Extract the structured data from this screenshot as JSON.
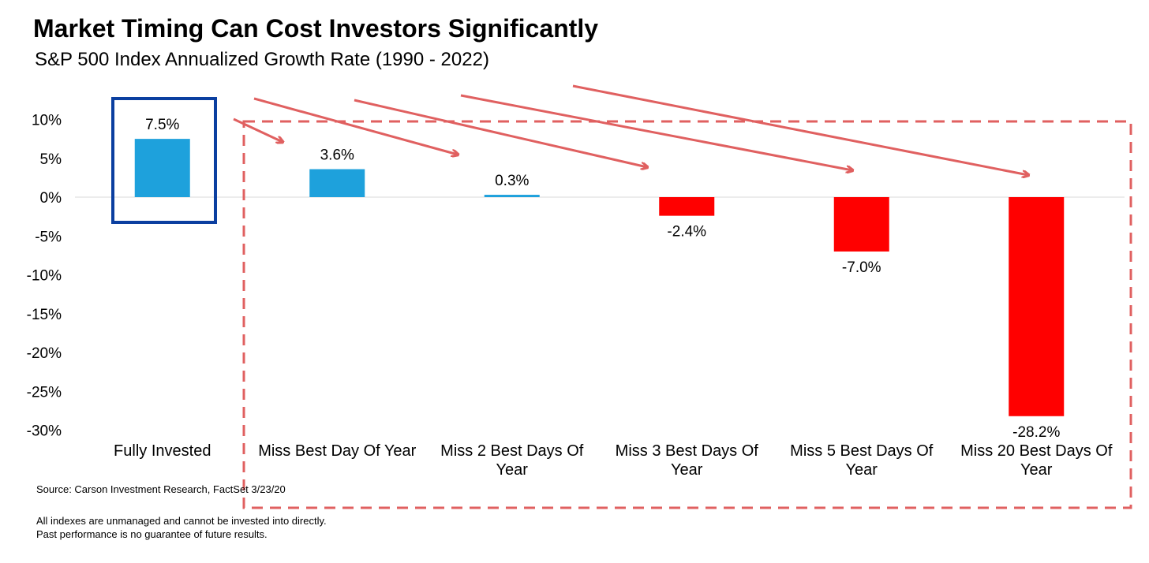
{
  "title": "Market Timing Can Cost Investors Significantly",
  "subtitle": "S&P 500 Index Annualized Growth Rate (1990 - 2022)",
  "source": "Source: Carson Investment Research, FactSet 3/23/20",
  "disclaimer": [
    "All indexes are unmanaged and cannot be invested into directly.",
    "Past performance is no guarantee of future results."
  ],
  "colors": {
    "positive": "#1ea1dc",
    "negative": "#ff0000",
    "highlight_box": "#0b3fa0",
    "arrows": "#e06060",
    "dashed_box": "#e06060",
    "zero_line": "#d9d9d9"
  },
  "chart_data": {
    "type": "bar",
    "categories": [
      [
        "Fully Invested"
      ],
      [
        "Miss Best Day Of Year"
      ],
      [
        "Miss 2 Best Days Of",
        "Year"
      ],
      [
        "Miss 3 Best Days Of",
        "Year"
      ],
      [
        "Miss 5 Best Days Of",
        "Year"
      ],
      [
        "Miss 20 Best Days Of",
        "Year"
      ]
    ],
    "values": [
      7.5,
      3.6,
      0.3,
      -2.4,
      -7.0,
      -28.2
    ],
    "data_labels": [
      "7.5%",
      "3.6%",
      "0.3%",
      "-2.4%",
      "-7.0%",
      "-28.2%"
    ],
    "ylim": [
      -30,
      10
    ],
    "yticks": [
      10,
      5,
      0,
      -5,
      -10,
      -15,
      -20,
      -25,
      -30
    ],
    "ytick_labels": [
      "10%",
      "5%",
      "0%",
      "-5%",
      "-10%",
      "-15%",
      "-20%",
      "-25%",
      "-30%"
    ],
    "grid": false,
    "legend": "none"
  }
}
